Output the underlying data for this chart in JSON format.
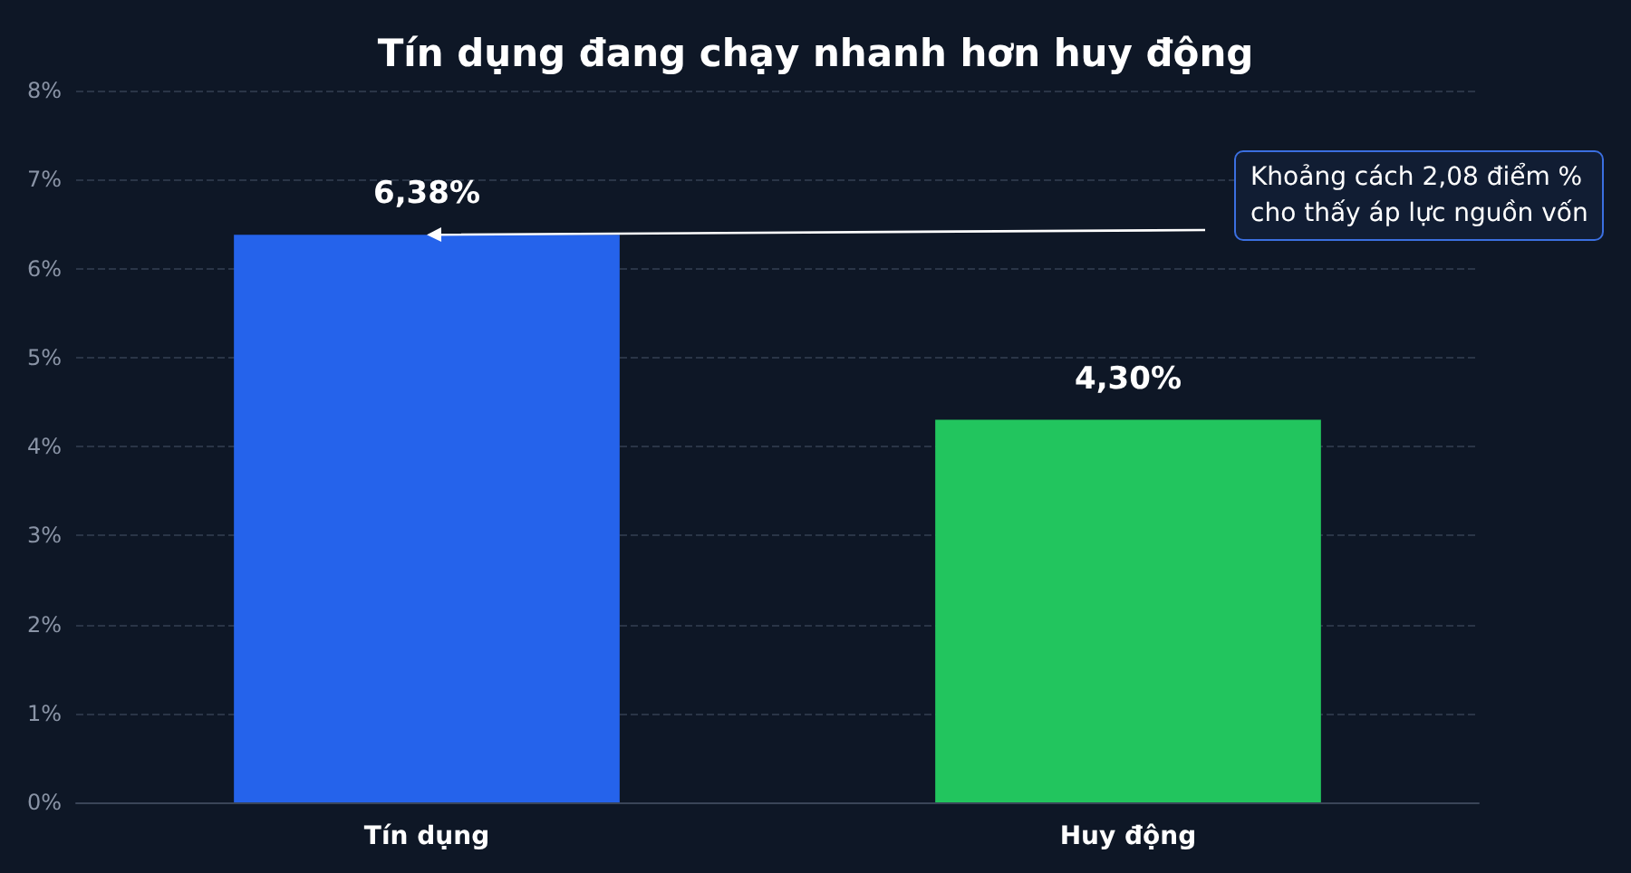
{
  "chart_data": {
    "type": "bar",
    "title": "Tín dụng đang chạy nhanh hơn huy động",
    "categories": [
      "Tín dụng",
      "Huy động"
    ],
    "values": [
      6.38,
      4.3
    ],
    "colors": [
      "#2563eb",
      "#22c55e"
    ],
    "value_labels": [
      "6,38%",
      "4,30%"
    ],
    "ylim": [
      0,
      8
    ],
    "yticks": [
      {
        "value": 0,
        "label": "0%"
      },
      {
        "value": 1,
        "label": "1%"
      },
      {
        "value": 2,
        "label": "2%"
      },
      {
        "value": 3,
        "label": "3%"
      },
      {
        "value": 4,
        "label": "4%"
      },
      {
        "value": 5,
        "label": "5%"
      },
      {
        "value": 6,
        "label": "6%"
      },
      {
        "value": 7,
        "label": "7%"
      },
      {
        "value": 8,
        "label": "8%"
      }
    ],
    "grid": "y",
    "annotations": [
      "Khoảng cách 2,08 điểm %\ncho thấy áp lực nguồn vốn"
    ]
  }
}
